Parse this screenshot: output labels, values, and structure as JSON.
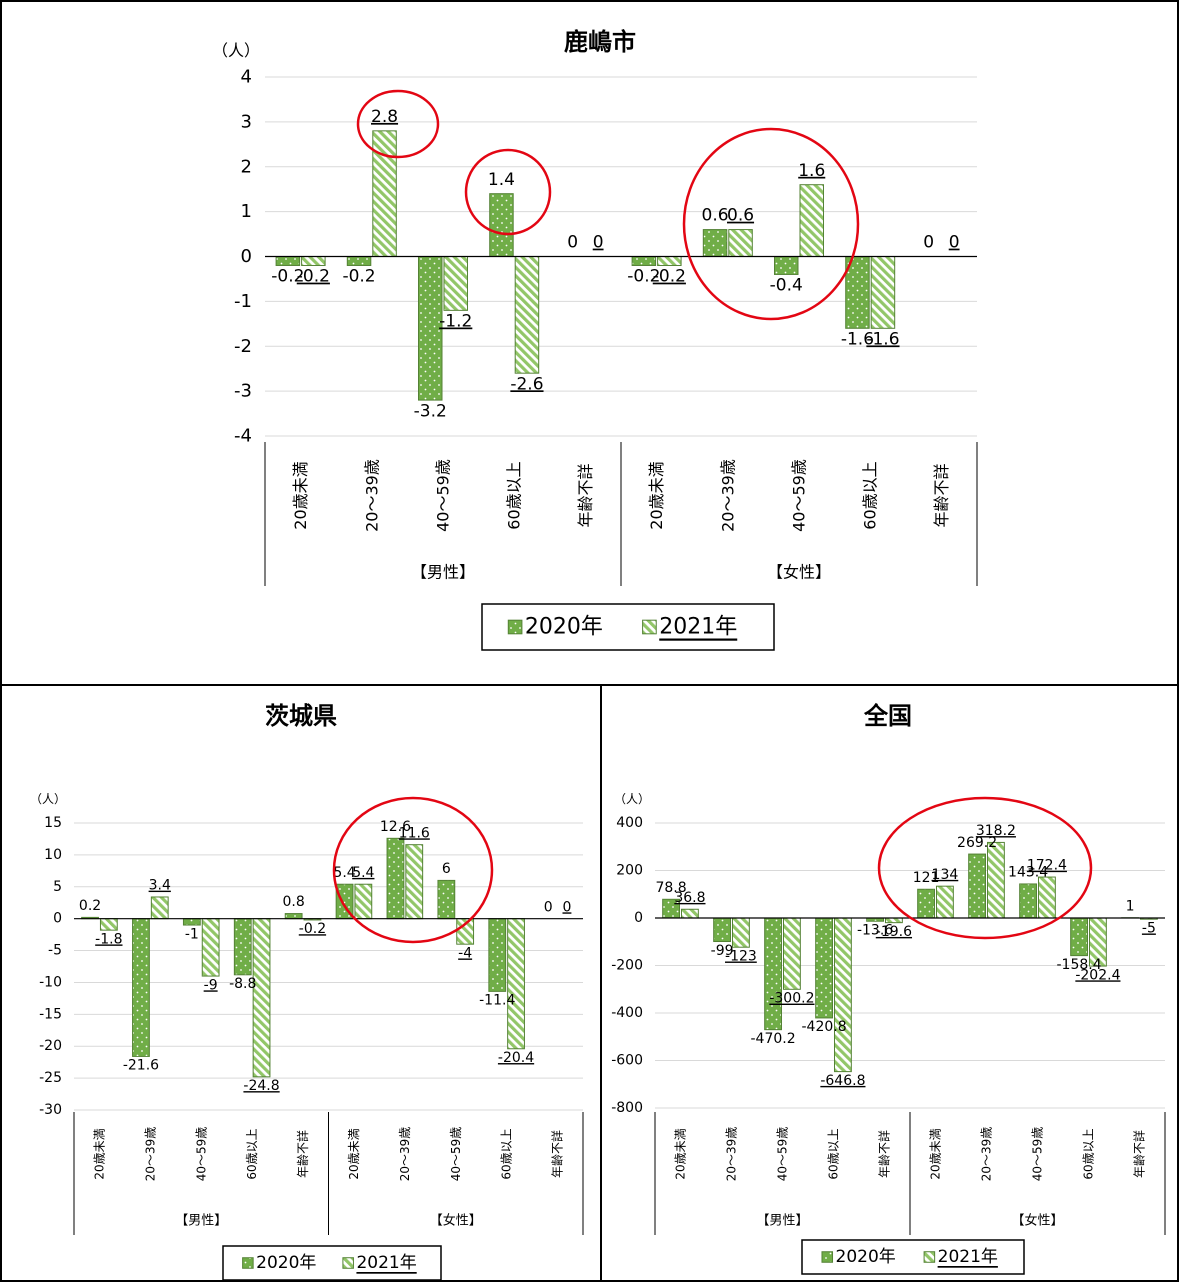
{
  "colors": {
    "series_2020": "#70AD47",
    "series_2021": "#A9D08E",
    "highlight": "#E30613",
    "grid": "#D9D9D9",
    "frame": "#000000"
  },
  "chart_data": [
    {
      "type": "bar",
      "title": "鹿嶋市",
      "unit": "（人）",
      "categories": [
        "20歳未満",
        "20～39歳",
        "40～59歳",
        "60歳以上",
        "年齢不詳",
        "20歳未満",
        "20～39歳",
        "40～59歳",
        "60歳以上",
        "年齢不詳"
      ],
      "groups": [
        "【男性】",
        "【女性】"
      ],
      "ylim": [
        -4,
        4
      ],
      "yticks": [
        4,
        3,
        2,
        1,
        0,
        -1,
        -2,
        -3,
        -4
      ],
      "grid": true,
      "legend_position": "bottom",
      "series": [
        {
          "name": "2020年",
          "values": [
            -0.2,
            -0.2,
            -3.2,
            1.4,
            0,
            -0.2,
            0.6,
            -0.4,
            -1.6,
            0
          ]
        },
        {
          "name": "2021年",
          "values": [
            -0.2,
            2.8,
            -1.2,
            -2.6,
            0,
            -0.2,
            0.6,
            1.6,
            -1.6,
            0
          ]
        }
      ],
      "data_labels": [
        [
          "-0.2",
          "-0.2",
          "-3.2",
          "1.4",
          "0",
          "-0.2",
          "0.6",
          "-0.4",
          "-1.6",
          "0"
        ],
        [
          "-0.2",
          "2.8",
          "-1.2",
          "-2.6",
          "0",
          "-0.2",
          "0.6",
          "1.6",
          "-1.6",
          "0"
        ]
      ],
      "highlights": [
        "20～39歳 男性 2021年",
        "60歳以上 男性 2020年",
        "女性 20～39歳 / 40～59歳"
      ]
    },
    {
      "type": "bar",
      "title": "茨城県",
      "unit": "（人）",
      "categories": [
        "20歳未満",
        "20～39歳",
        "40～59歳",
        "60歳以上",
        "年齢不詳",
        "20歳未満",
        "20～39歳",
        "40～59歳",
        "60歳以上",
        "年齢不詳"
      ],
      "groups": [
        "【男性】",
        "【女性】"
      ],
      "ylim": [
        -30,
        15
      ],
      "yticks": [
        15,
        10,
        5,
        0,
        -5,
        -10,
        -15,
        -20,
        -25,
        -30
      ],
      "grid": true,
      "legend_position": "bottom",
      "series": [
        {
          "name": "2020年",
          "values": [
            0.2,
            -21.6,
            -1,
            -8.8,
            0.8,
            5.4,
            12.6,
            6,
            -11.4,
            0
          ]
        },
        {
          "name": "2021年",
          "values": [
            -1.8,
            3.4,
            -9,
            -24.8,
            -0.2,
            5.4,
            11.6,
            -4,
            -20.4,
            0
          ]
        }
      ],
      "data_labels": [
        [
          "0.2",
          "-21.6",
          "-1",
          "-8.8",
          "0.8",
          "5.4",
          "12.6",
          "6",
          "-11.4",
          "0"
        ],
        [
          "-1.8",
          "3.4",
          "-9",
          "-24.8",
          "-0.2",
          "5.4",
          "11.6",
          "-4",
          "-20.4",
          "0"
        ]
      ],
      "highlights": [
        "女性 20歳未満 ～ 40～59歳"
      ]
    },
    {
      "type": "bar",
      "title": "全国",
      "unit": "（人）",
      "categories": [
        "20歳未満",
        "20～39歳",
        "40～59歳",
        "60歳以上",
        "年齢不詳",
        "20歳未満",
        "20～39歳",
        "40～59歳",
        "60歳以上",
        "年齢不詳"
      ],
      "groups": [
        "【男性】",
        "【女性】"
      ],
      "ylim": [
        -800,
        400
      ],
      "yticks": [
        400,
        200,
        0,
        -200,
        -400,
        -600,
        -800
      ],
      "grid": true,
      "legend_position": "bottom",
      "series": [
        {
          "name": "2020年",
          "values": [
            78.8,
            -99,
            -470.2,
            -420.8,
            -13.6,
            121,
            269.2,
            143.4,
            -158.4,
            1
          ]
        },
        {
          "name": "2021年",
          "values": [
            36.8,
            -123,
            -300.2,
            -646.8,
            -19.6,
            134,
            318.2,
            172.4,
            -202.4,
            -5
          ]
        }
      ],
      "data_labels": [
        [
          "78.8",
          "-99",
          "-470.2",
          "-420.8",
          "-13.6",
          "121",
          "269.2",
          "143.4",
          "-158.4",
          "1"
        ],
        [
          "36.8",
          "-123",
          "-300.2",
          "-646.8",
          "-19.6",
          "134",
          "318.2",
          "172.4",
          "-202.4",
          "-5"
        ]
      ],
      "highlights": [
        "女性 20歳未満 ～ 40～59歳"
      ]
    }
  ]
}
